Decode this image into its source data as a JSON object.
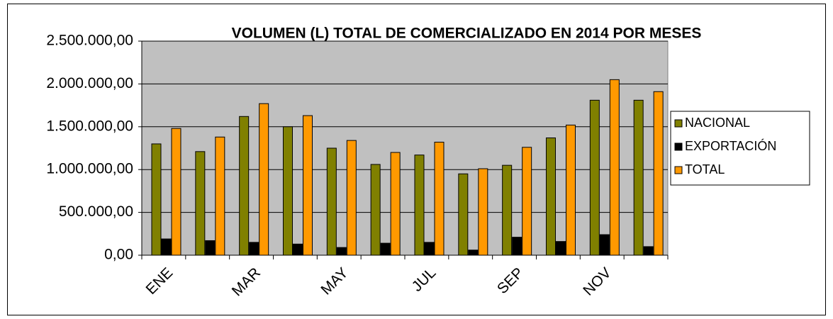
{
  "chart_data": {
    "type": "bar",
    "title": "VOLUMEN (L) TOTAL DE COMERCIALIZADO EN 2014 POR MESES",
    "categories": [
      "ENE",
      null,
      "MAR",
      null,
      "MAY",
      null,
      "JUL",
      null,
      "SEP",
      null,
      "NOV",
      null
    ],
    "series": [
      {
        "name": "NACIONAL",
        "color": "#808000",
        "values": [
          1300000,
          1210000,
          1620000,
          1500000,
          1250000,
          1060000,
          1170000,
          950000,
          1050000,
          1370000,
          1810000,
          1810000
        ]
      },
      {
        "name": "EXPORTACIÓN",
        "color": "#000000",
        "values": [
          190000,
          170000,
          150000,
          130000,
          90000,
          140000,
          150000,
          60000,
          210000,
          160000,
          240000,
          100000
        ]
      },
      {
        "name": "TOTAL",
        "color": "#ff9900",
        "values": [
          1480000,
          1380000,
          1770000,
          1630000,
          1340000,
          1200000,
          1320000,
          1010000,
          1260000,
          1520000,
          2050000,
          1910000
        ]
      }
    ],
    "ylim": [
      0,
      2500000
    ],
    "yticks": [
      {
        "value": 0,
        "label": "0,00"
      },
      {
        "value": 500000,
        "label": "500.000,00"
      },
      {
        "value": 1000000,
        "label": "1.000.000,00"
      },
      {
        "value": 1500000,
        "label": "1.500.000,00"
      },
      {
        "value": 2000000,
        "label": "2.000.000,00"
      },
      {
        "value": 2500000,
        "label": "2.500.000,00"
      }
    ],
    "grid": true,
    "plot_background": "#c0c0c0",
    "legend": "right"
  }
}
